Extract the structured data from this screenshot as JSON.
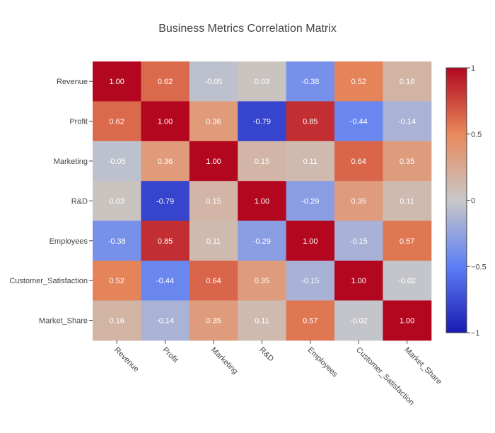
{
  "chart_data": {
    "type": "heatmap",
    "title": "Business Metrics Correlation Matrix",
    "x_categories": [
      "Revenue",
      "Profit",
      "Marketing",
      "R&D",
      "Employees",
      "Customer_Satisfaction",
      "Market_Share"
    ],
    "y_categories": [
      "Revenue",
      "Profit",
      "Marketing",
      "R&D",
      "Employees",
      "Customer_Satisfaction",
      "Market_Share"
    ],
    "values": [
      [
        1.0,
        0.62,
        -0.05,
        0.03,
        -0.38,
        0.52,
        0.16
      ],
      [
        0.62,
        1.0,
        0.36,
        -0.79,
        0.85,
        -0.44,
        -0.14
      ],
      [
        -0.05,
        0.36,
        1.0,
        0.15,
        0.11,
        0.64,
        0.35
      ],
      [
        0.03,
        -0.79,
        0.15,
        1.0,
        -0.29,
        0.35,
        0.11
      ],
      [
        -0.38,
        0.85,
        0.11,
        -0.29,
        1.0,
        -0.15,
        0.57
      ],
      [
        0.52,
        -0.44,
        0.64,
        0.35,
        -0.15,
        1.0,
        -0.02
      ],
      [
        0.16,
        -0.14,
        0.35,
        0.11,
        0.57,
        -0.02,
        1.0
      ]
    ],
    "value_format": "0.00",
    "zlim": [
      -1,
      1
    ],
    "colorscale": "RdBu-coolwarm",
    "colorbar": {
      "ticks": [
        1,
        0.5,
        0,
        -0.5,
        -1
      ],
      "tick_labels": [
        "1",
        "0.5",
        "0",
        "−0.5",
        "−1"
      ]
    },
    "xlabel": "",
    "ylabel": ""
  },
  "colors": {
    "low": "#1a1ab2",
    "mid_low": "#5d7ef5",
    "mid": "#c8c8c8",
    "mid_high": "#e8895b",
    "high": "#b2071f",
    "axis_text": "#444444"
  }
}
